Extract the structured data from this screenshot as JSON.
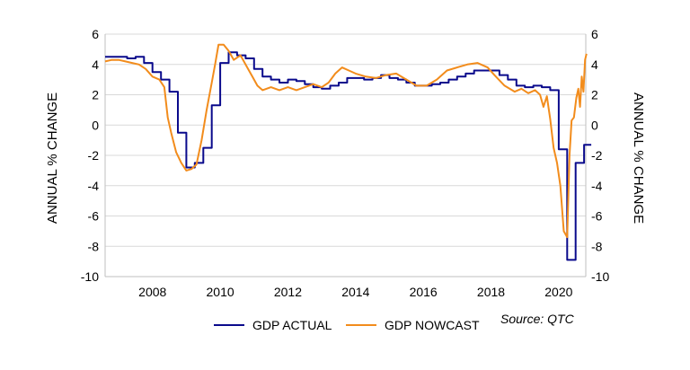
{
  "chart_data": {
    "type": "line",
    "title": "",
    "xlabel": "",
    "ylabel_left": "ANNUAL % CHANGE",
    "ylabel_right": "ANNUAL % CHANGE",
    "xlim": [
      2006.6,
      2020.8
    ],
    "ylim": [
      -10,
      6
    ],
    "x_ticks": [
      2008,
      2010,
      2012,
      2014,
      2016,
      2018,
      2020
    ],
    "x_tick_labels": [
      "2008",
      "2010",
      "2012",
      "2014",
      "2016",
      "2018",
      "2020"
    ],
    "y_ticks": [
      -10,
      -8,
      -6,
      -4,
      -2,
      0,
      2,
      4,
      6
    ],
    "y_tick_labels": [
      "-10",
      "-8",
      "-6",
      "-4",
      "-2",
      "0",
      "2",
      "4",
      "6"
    ],
    "grid": "horizontal",
    "legend_position": "bottom",
    "source_note": "Source: QTC",
    "colors": {
      "actual": "#0a0a8c",
      "nowcast": "#f28c1c",
      "grid": "#d9d9d9",
      "axis": "#bfbfbf"
    },
    "series": [
      {
        "name": "GDP ACTUAL",
        "style": "step",
        "points": [
          [
            2006.6,
            4.5
          ],
          [
            2007.25,
            4.4
          ],
          [
            2007.5,
            4.5
          ],
          [
            2007.75,
            4.1
          ],
          [
            2008.0,
            3.5
          ],
          [
            2008.25,
            3.0
          ],
          [
            2008.5,
            2.2
          ],
          [
            2008.75,
            -0.5
          ],
          [
            2009.0,
            -2.8
          ],
          [
            2009.25,
            -2.5
          ],
          [
            2009.5,
            -1.5
          ],
          [
            2009.75,
            1.3
          ],
          [
            2010.0,
            4.1
          ],
          [
            2010.25,
            4.8
          ],
          [
            2010.5,
            4.6
          ],
          [
            2010.75,
            4.4
          ],
          [
            2011.0,
            3.7
          ],
          [
            2011.25,
            3.2
          ],
          [
            2011.5,
            3.0
          ],
          [
            2011.75,
            2.8
          ],
          [
            2012.0,
            3.0
          ],
          [
            2012.25,
            2.9
          ],
          [
            2012.5,
            2.7
          ],
          [
            2012.75,
            2.5
          ],
          [
            2013.0,
            2.4
          ],
          [
            2013.25,
            2.6
          ],
          [
            2013.5,
            2.8
          ],
          [
            2013.75,
            3.1
          ],
          [
            2014.0,
            3.1
          ],
          [
            2014.25,
            3.0
          ],
          [
            2014.5,
            3.1
          ],
          [
            2014.75,
            3.3
          ],
          [
            2015.0,
            3.1
          ],
          [
            2015.25,
            3.0
          ],
          [
            2015.5,
            2.8
          ],
          [
            2015.75,
            2.6
          ],
          [
            2016.0,
            2.6
          ],
          [
            2016.25,
            2.7
          ],
          [
            2016.5,
            2.8
          ],
          [
            2016.75,
            3.0
          ],
          [
            2017.0,
            3.2
          ],
          [
            2017.25,
            3.4
          ],
          [
            2017.5,
            3.6
          ],
          [
            2017.75,
            3.6
          ],
          [
            2018.0,
            3.6
          ],
          [
            2018.25,
            3.3
          ],
          [
            2018.5,
            3.0
          ],
          [
            2018.75,
            2.6
          ],
          [
            2019.0,
            2.5
          ],
          [
            2019.25,
            2.6
          ],
          [
            2019.5,
            2.5
          ],
          [
            2019.75,
            2.3
          ],
          [
            2020.0,
            -1.6
          ],
          [
            2020.25,
            -8.9
          ],
          [
            2020.5,
            -2.5
          ],
          [
            2020.75,
            -1.3
          ]
        ]
      },
      {
        "name": "GDP NOWCAST",
        "style": "line",
        "points": [
          [
            2006.6,
            4.2
          ],
          [
            2006.8,
            4.3
          ],
          [
            2007.0,
            4.3
          ],
          [
            2007.2,
            4.2
          ],
          [
            2007.4,
            4.1
          ],
          [
            2007.6,
            4.0
          ],
          [
            2007.8,
            3.7
          ],
          [
            2008.0,
            3.2
          ],
          [
            2008.2,
            3.0
          ],
          [
            2008.35,
            2.5
          ],
          [
            2008.45,
            0.5
          ],
          [
            2008.55,
            -0.5
          ],
          [
            2008.7,
            -1.8
          ],
          [
            2008.85,
            -2.5
          ],
          [
            2009.0,
            -3.0
          ],
          [
            2009.15,
            -2.9
          ],
          [
            2009.3,
            -2.6
          ],
          [
            2009.45,
            -1.0
          ],
          [
            2009.6,
            1.0
          ],
          [
            2009.75,
            2.8
          ],
          [
            2009.85,
            4.0
          ],
          [
            2009.95,
            5.3
          ],
          [
            2010.1,
            5.3
          ],
          [
            2010.25,
            4.9
          ],
          [
            2010.4,
            4.3
          ],
          [
            2010.6,
            4.6
          ],
          [
            2010.8,
            3.8
          ],
          [
            2010.95,
            3.2
          ],
          [
            2011.1,
            2.6
          ],
          [
            2011.25,
            2.3
          ],
          [
            2011.5,
            2.5
          ],
          [
            2011.75,
            2.3
          ],
          [
            2012.0,
            2.5
          ],
          [
            2012.25,
            2.3
          ],
          [
            2012.5,
            2.5
          ],
          [
            2012.75,
            2.7
          ],
          [
            2013.0,
            2.5
          ],
          [
            2013.2,
            2.8
          ],
          [
            2013.4,
            3.4
          ],
          [
            2013.6,
            3.8
          ],
          [
            2013.8,
            3.6
          ],
          [
            2014.0,
            3.4
          ],
          [
            2014.3,
            3.2
          ],
          [
            2014.6,
            3.1
          ],
          [
            2014.9,
            3.3
          ],
          [
            2015.2,
            3.4
          ],
          [
            2015.5,
            3.0
          ],
          [
            2015.8,
            2.6
          ],
          [
            2016.1,
            2.6
          ],
          [
            2016.4,
            3.0
          ],
          [
            2016.7,
            3.6
          ],
          [
            2017.0,
            3.8
          ],
          [
            2017.3,
            4.0
          ],
          [
            2017.6,
            4.1
          ],
          [
            2017.9,
            3.8
          ],
          [
            2018.1,
            3.3
          ],
          [
            2018.4,
            2.6
          ],
          [
            2018.7,
            2.2
          ],
          [
            2018.9,
            2.4
          ],
          [
            2019.1,
            2.1
          ],
          [
            2019.3,
            2.3
          ],
          [
            2019.45,
            2.0
          ],
          [
            2019.55,
            1.2
          ],
          [
            2019.65,
            1.9
          ],
          [
            2019.75,
            0.4
          ],
          [
            2019.85,
            -1.5
          ],
          [
            2019.95,
            -2.5
          ],
          [
            2020.05,
            -4.0
          ],
          [
            2020.15,
            -7.0
          ],
          [
            2020.25,
            -7.4
          ],
          [
            2020.32,
            -2.0
          ],
          [
            2020.38,
            0.3
          ],
          [
            2020.45,
            0.5
          ],
          [
            2020.52,
            1.8
          ],
          [
            2020.58,
            2.4
          ],
          [
            2020.63,
            1.2
          ],
          [
            2020.68,
            3.2
          ],
          [
            2020.73,
            2.2
          ],
          [
            2020.78,
            4.3
          ],
          [
            2020.82,
            4.7
          ]
        ]
      }
    ]
  }
}
